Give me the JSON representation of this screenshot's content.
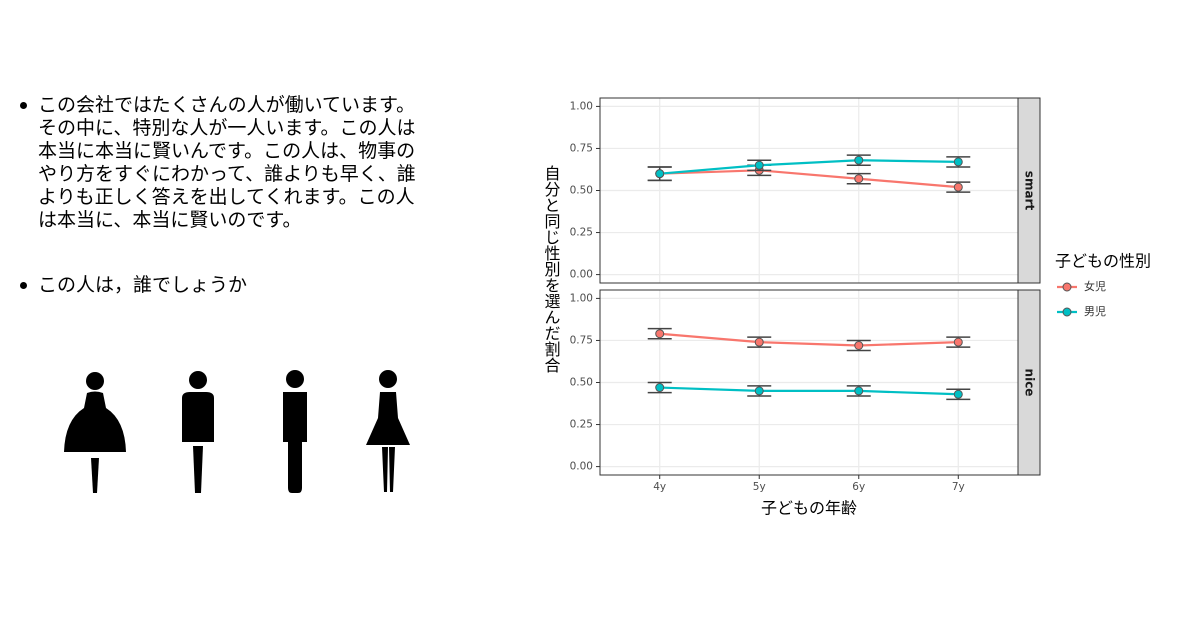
{
  "bullets": [
    {
      "lines": [
        "この会社ではたくさんの人が働いています。",
        "その中に、特別な人が一人います。この人は",
        "本当に本当に賢いんです。この人は、物事の",
        "やり方をすぐにわかって、誰よりも早く、誰",
        "よりも正しく答えを出してくれます。この人",
        "は本当に、本当に賢いのです。"
      ]
    },
    {
      "lines": [
        "この人は，誰でしょうか"
      ]
    }
  ],
  "chart_data": {
    "type": "line",
    "y_label": "自分と同じ性別を選んだ割合",
    "x_label": "子どもの年齢",
    "legend_title": "子どもの性別",
    "categories": [
      "4y",
      "5y",
      "6y",
      "7y"
    ],
    "ylim": [
      -0.05,
      1.05
    ],
    "yticks": [
      {
        "value": 0,
        "label": "0.00"
      },
      {
        "value": 0.25,
        "label": "0.25"
      },
      {
        "value": 0.5,
        "label": "0.50"
      },
      {
        "value": 0.75,
        "label": "0.75"
      },
      {
        "value": 1,
        "label": "1.00"
      }
    ],
    "grid": true,
    "panels": [
      {
        "name": "smart",
        "series": [
          {
            "name": "女児",
            "color": "#F8766D",
            "values": [
              0.6,
              0.62,
              0.57,
              0.52
            ],
            "errors": [
              0.04,
              0.03,
              0.03,
              0.03
            ]
          },
          {
            "name": "男児",
            "color": "#00BFC4",
            "values": [
              0.6,
              0.65,
              0.68,
              0.67
            ],
            "errors": [
              0.04,
              0.03,
              0.03,
              0.03
            ]
          }
        ]
      },
      {
        "name": "nice",
        "series": [
          {
            "name": "女児",
            "color": "#F8766D",
            "values": [
              0.79,
              0.74,
              0.72,
              0.74
            ],
            "errors": [
              0.03,
              0.03,
              0.03,
              0.03
            ]
          },
          {
            "name": "男児",
            "color": "#00BFC4",
            "values": [
              0.47,
              0.45,
              0.45,
              0.43
            ],
            "errors": [
              0.03,
              0.03,
              0.03,
              0.03
            ]
          }
        ]
      }
    ]
  }
}
